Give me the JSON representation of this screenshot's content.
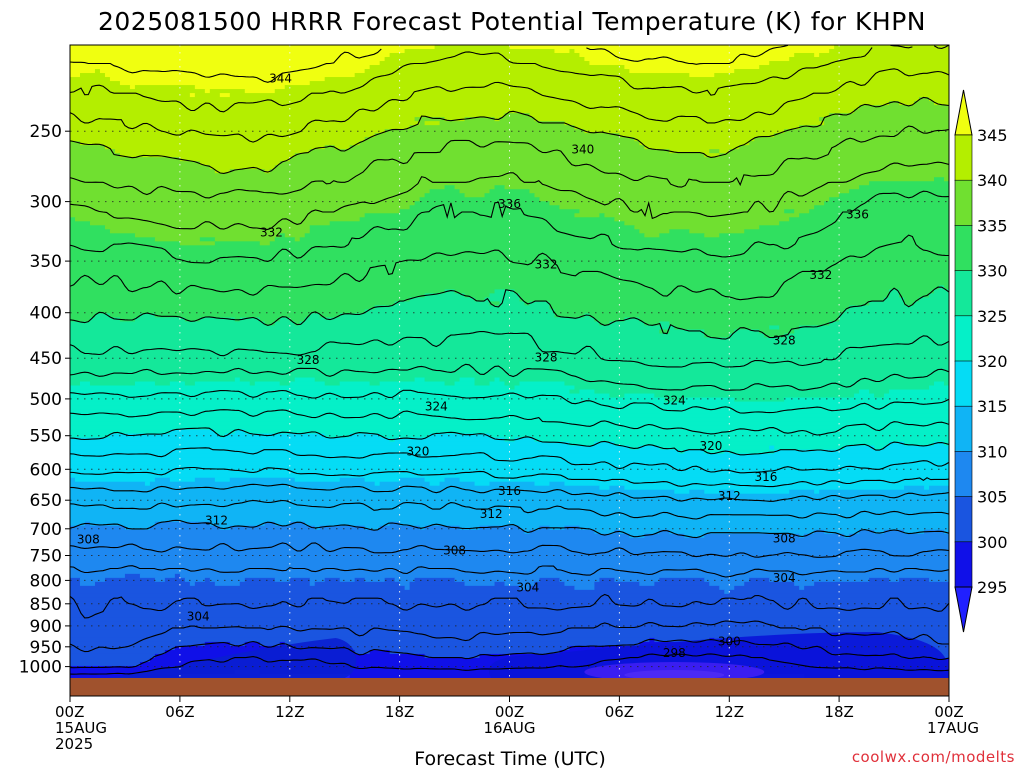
{
  "chart_data": {
    "type": "heatmap",
    "title": "2025081500 HRRR Forecast Potential Temperature (K) for KHPN",
    "xlabel": "Forecast Time (UTC)",
    "ylabel": "",
    "credit": "coolwx.com/modelts",
    "x_range_hours": [
      0,
      48
    ],
    "y_range_hPa": [
      1030,
      200
    ],
    "y_scale": "log",
    "grid": true,
    "y_ticks": [
      250,
      300,
      350,
      400,
      450,
      500,
      550,
      600,
      650,
      700,
      750,
      800,
      850,
      900,
      950,
      1000
    ],
    "x_ticks": [
      {
        "hour": 0,
        "l1": "00Z",
        "l2": "15AUG",
        "l3": "2025"
      },
      {
        "hour": 6,
        "l1": "06Z",
        "l2": "",
        "l3": ""
      },
      {
        "hour": 12,
        "l1": "12Z",
        "l2": "",
        "l3": ""
      },
      {
        "hour": 18,
        "l1": "18Z",
        "l2": "",
        "l3": ""
      },
      {
        "hour": 24,
        "l1": "00Z",
        "l2": "16AUG",
        "l3": ""
      },
      {
        "hour": 30,
        "l1": "06Z",
        "l2": "",
        "l3": ""
      },
      {
        "hour": 36,
        "l1": "12Z",
        "l2": "",
        "l3": ""
      },
      {
        "hour": 42,
        "l1": "18Z",
        "l2": "",
        "l3": ""
      },
      {
        "hour": 48,
        "l1": "00Z",
        "l2": "17AUG",
        "l3": ""
      }
    ],
    "colorbar": {
      "levels": [
        295,
        300,
        305,
        310,
        315,
        320,
        325,
        330,
        335,
        340,
        345
      ],
      "colors": [
        "#2020ff",
        "#1010e8",
        "#1a55e0",
        "#1e88f0",
        "#10b4f5",
        "#05dcf5",
        "#05f0c8",
        "#14e89a",
        "#30e060",
        "#70e030",
        "#b4ee00",
        "#f0ff10"
      ]
    },
    "contour_labels": [
      {
        "value": "344",
        "t": 11.5,
        "p": 218
      },
      {
        "value": "340",
        "t": 28,
        "p": 262
      },
      {
        "value": "336",
        "t": 24,
        "p": 302
      },
      {
        "value": "336",
        "t": 43,
        "p": 310
      },
      {
        "value": "332",
        "t": 11,
        "p": 325
      },
      {
        "value": "332",
        "t": 26,
        "p": 353
      },
      {
        "value": "332",
        "t": 41,
        "p": 363
      },
      {
        "value": "328",
        "t": 13,
        "p": 452
      },
      {
        "value": "328",
        "t": 26,
        "p": 449
      },
      {
        "value": "328",
        "t": 39,
        "p": 430
      },
      {
        "value": "324",
        "t": 20,
        "p": 510
      },
      {
        "value": "324",
        "t": 33,
        "p": 502
      },
      {
        "value": "320",
        "t": 19,
        "p": 573
      },
      {
        "value": "320",
        "t": 35,
        "p": 565
      },
      {
        "value": "316",
        "t": 24,
        "p": 635
      },
      {
        "value": "316",
        "t": 38,
        "p": 612
      },
      {
        "value": "312",
        "t": 8,
        "p": 685
      },
      {
        "value": "312",
        "t": 23,
        "p": 674
      },
      {
        "value": "312",
        "t": 36,
        "p": 643
      },
      {
        "value": "308",
        "t": 1,
        "p": 720
      },
      {
        "value": "308",
        "t": 21,
        "p": 740
      },
      {
        "value": "308",
        "t": 39,
        "p": 718
      },
      {
        "value": "304",
        "t": 7,
        "p": 878
      },
      {
        "value": "304",
        "t": 25,
        "p": 815
      },
      {
        "value": "304",
        "t": 39,
        "p": 795
      },
      {
        "value": "300",
        "t": 36,
        "p": 937
      },
      {
        "value": "298",
        "t": 33,
        "p": 965
      }
    ]
  }
}
